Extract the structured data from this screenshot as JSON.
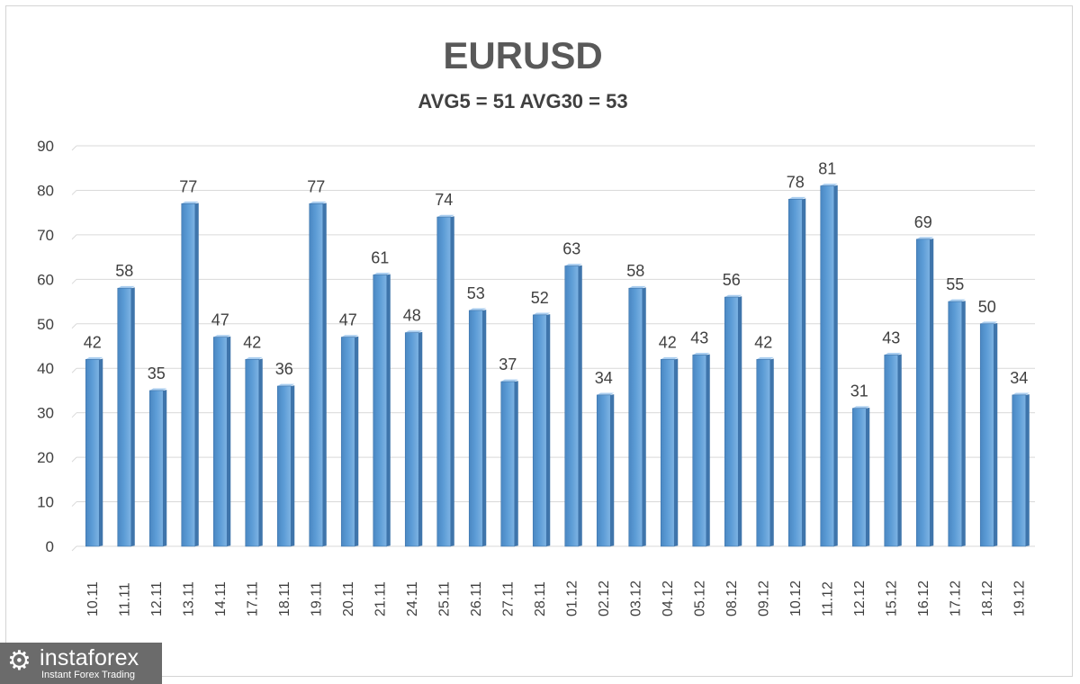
{
  "chart_data": {
    "type": "bar",
    "title": "EURUSD",
    "subtitle": "AVG5 = 51 AVG30 = 53",
    "categories": [
      "10.11",
      "11.11",
      "12.11",
      "13.11",
      "14.11",
      "17.11",
      "18.11",
      "19.11",
      "20.11",
      "21.11",
      "24.11",
      "25.11",
      "26.11",
      "27.11",
      "28.11",
      "01.12",
      "02.12",
      "03.12",
      "04.12",
      "05.12",
      "08.12",
      "09.12",
      "10.12",
      "11.12",
      "12.12",
      "15.12",
      "16.12",
      "17.12",
      "18.12",
      "19.12"
    ],
    "values": [
      42,
      58,
      35,
      77,
      47,
      42,
      36,
      77,
      47,
      61,
      48,
      74,
      53,
      37,
      52,
      63,
      34,
      58,
      42,
      43,
      56,
      42,
      78,
      81,
      31,
      43,
      69,
      55,
      50,
      34
    ],
    "ylim": [
      0,
      90
    ],
    "yticks": [
      0,
      10,
      20,
      30,
      40,
      50,
      60,
      70,
      80,
      90
    ],
    "grid": true,
    "data_labels": true,
    "bar_color": "#5b9bd5",
    "grid_color": "#d9d9d9",
    "text_color": "#404040"
  },
  "watermark": {
    "brand": "instaforex",
    "tagline": "Instant Forex Trading",
    "icon": "gear-icon"
  }
}
